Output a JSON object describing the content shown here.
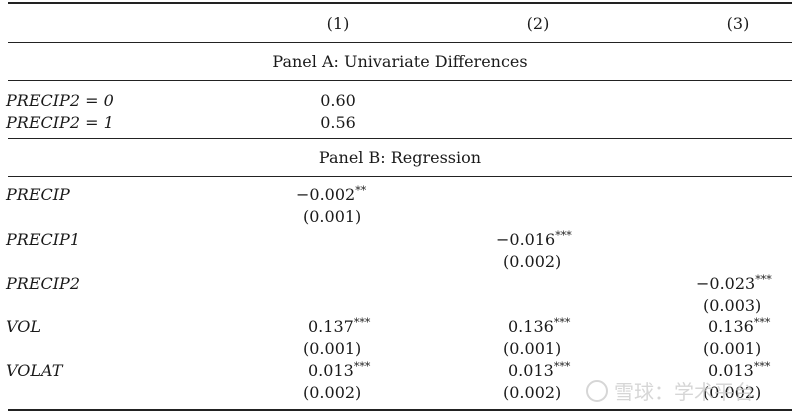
{
  "header": {
    "col1": "(1)",
    "col2": "(2)",
    "col3": "(3)"
  },
  "panel_a": {
    "title": "Panel A: Univariate Differences",
    "rows": [
      {
        "label": "PRECIP2 = 0",
        "value": "0.60"
      },
      {
        "label": "PRECIP2 = 1",
        "value": "0.56"
      }
    ]
  },
  "panel_b": {
    "title": "Panel B: Regression",
    "rows": [
      {
        "label": "PRECIP",
        "c1": "−0.002",
        "c1_stars": "**",
        "c1_se": "(0.001)"
      },
      {
        "label": "PRECIP1",
        "c2": "−0.016",
        "c2_stars": "***",
        "c2_se": "(0.002)"
      },
      {
        "label": "PRECIP2",
        "c3": "−0.023",
        "c3_stars": "***",
        "c3_se": "(0.003)"
      },
      {
        "label": "VOL",
        "c1": "0.137",
        "c1_stars": "***",
        "c1_se": "(0.001)",
        "c2": "0.136",
        "c2_stars": "***",
        "c2_se": "(0.001)",
        "c3": "0.136",
        "c3_stars": "***",
        "c3_se": "(0.001)"
      },
      {
        "label": "VOLAT",
        "c1": "0.013",
        "c1_stars": "***",
        "c1_se": "(0.002)",
        "c2": "0.013",
        "c2_stars": "***",
        "c2_se": "(0.002)",
        "c3": "0.013",
        "c3_stars": "***",
        "c3_se": "(0.002)"
      }
    ]
  },
  "watermark": {
    "text": "雪球：学术平台"
  }
}
